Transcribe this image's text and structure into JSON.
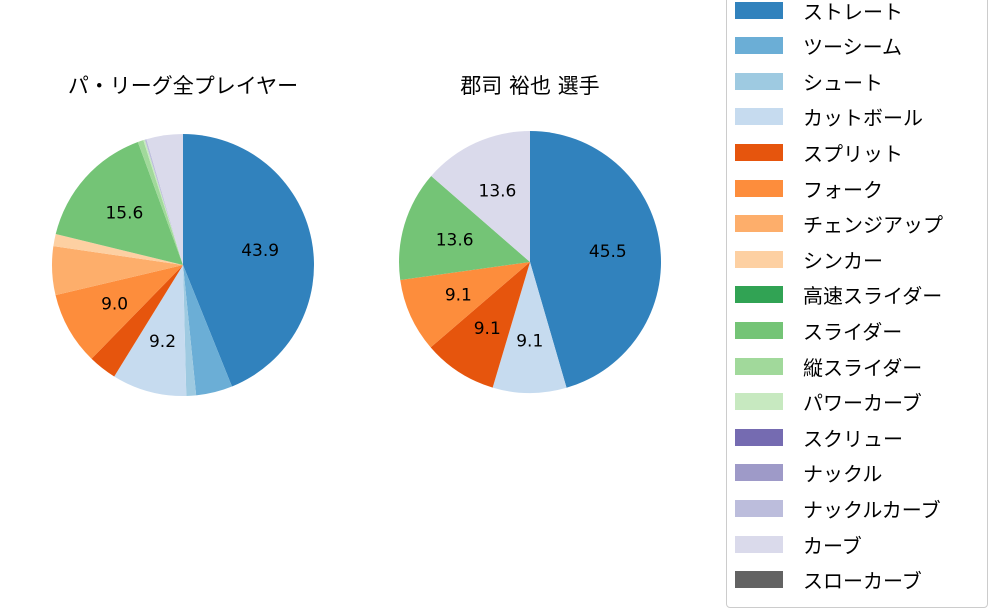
{
  "chart_data": [
    {
      "type": "pie",
      "title": "パ・リーグ全プレイヤー",
      "categories": [
        "ストレート",
        "ツーシーム",
        "シュート",
        "カットボール",
        "スプリット",
        "フォーク",
        "チェンジアップ",
        "シンカー",
        "スライダー",
        "縦スライダー",
        "パワーカーブ",
        "ナックルカーブ",
        "カーブ"
      ],
      "values": [
        43.9,
        4.5,
        1.2,
        9.2,
        3.5,
        9.0,
        6.0,
        1.5,
        15.6,
        0.7,
        0.2,
        0.2,
        4.5
      ],
      "labels_shown": [
        "43.9",
        "9.2",
        "9.0",
        "15.6"
      ],
      "start_angle": 90,
      "direction": "clockwise"
    },
    {
      "type": "pie",
      "title": "郡司 裕也  選手",
      "categories": [
        "ストレート",
        "カットボール",
        "スプリット",
        "フォーク",
        "スライダー",
        "カーブ"
      ],
      "values": [
        45.5,
        9.1,
        9.1,
        9.1,
        13.6,
        13.6
      ],
      "labels_shown": [
        "45.5",
        "9.1",
        "9.1",
        "9.1",
        "13.6",
        "13.6"
      ],
      "start_angle": 90,
      "direction": "clockwise"
    }
  ],
  "titles": {
    "left": "パ・リーグ全プレイヤー",
    "right": "郡司 裕也  選手"
  },
  "colors": {
    "ストレート": "#3182bd",
    "ツーシーム": "#6baed6",
    "シュート": "#9ecae1",
    "カットボール": "#c6dbef",
    "スプリット": "#e6550d",
    "フォーク": "#fd8d3c",
    "チェンジアップ": "#fdae6b",
    "シンカー": "#fdd0a2",
    "高速スライダー": "#31a354",
    "スライダー": "#74c476",
    "縦スライダー": "#a1d99b",
    "パワーカーブ": "#c7e9c0",
    "スクリュー": "#756bb1",
    "ナックル": "#9e9ac8",
    "ナックルカーブ": "#bcbddc",
    "カーブ": "#dadaeb",
    "スローカーブ": "#636363"
  },
  "legend": [
    {
      "label": "ストレート",
      "color": "#3182bd"
    },
    {
      "label": "ツーシーム",
      "color": "#6baed6"
    },
    {
      "label": "シュート",
      "color": "#9ecae1"
    },
    {
      "label": "カットボール",
      "color": "#c6dbef"
    },
    {
      "label": "スプリット",
      "color": "#e6550d"
    },
    {
      "label": "フォーク",
      "color": "#fd8d3c"
    },
    {
      "label": "チェンジアップ",
      "color": "#fdae6b"
    },
    {
      "label": "シンカー",
      "color": "#fdd0a2"
    },
    {
      "label": "高速スライダー",
      "color": "#31a354"
    },
    {
      "label": "スライダー",
      "color": "#74c476"
    },
    {
      "label": "縦スライダー",
      "color": "#a1d99b"
    },
    {
      "label": "パワーカーブ",
      "color": "#c7e9c0"
    },
    {
      "label": "スクリュー",
      "color": "#756bb1"
    },
    {
      "label": "ナックル",
      "color": "#9e9ac8"
    },
    {
      "label": "ナックルカーブ",
      "color": "#bcbddc"
    },
    {
      "label": "カーブ",
      "color": "#dadaeb"
    },
    {
      "label": "スローカーブ",
      "color": "#636363"
    }
  ]
}
